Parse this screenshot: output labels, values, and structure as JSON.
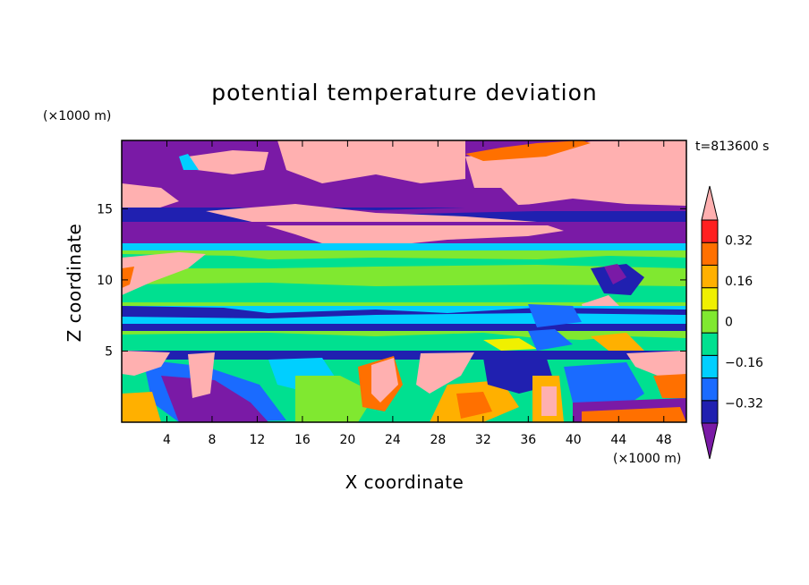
{
  "chart_data": {
    "type": "heatmap",
    "title": "potential temperature deviation",
    "xlabel": "X coordinate",
    "ylabel": "Z coordinate",
    "x_unit": "(×1000 m)",
    "y_unit": "(×1000 m)",
    "time_label": "t=813600 s",
    "xlim": [
      0,
      50
    ],
    "ylim": [
      0,
      19.8
    ],
    "x_ticks": [
      4,
      8,
      12,
      16,
      20,
      24,
      28,
      32,
      36,
      40,
      44,
      48
    ],
    "y_ticks": [
      5,
      10,
      15
    ],
    "colorbar": {
      "levels": [
        -0.4,
        -0.32,
        -0.24,
        -0.16,
        -0.08,
        0,
        0.08,
        0.16,
        0.24,
        0.32,
        0.4
      ],
      "labeled_levels": [
        {
          "value": 0.32,
          "label": "0.32"
        },
        {
          "value": 0.16,
          "label": "0.16"
        },
        {
          "value": 0,
          "label": "0"
        },
        {
          "value": -0.16,
          "label": "−0.16"
        },
        {
          "value": -0.32,
          "label": "−0.32"
        }
      ],
      "colors": [
        "#7a1aa6",
        "#2020b0",
        "#1a6bff",
        "#00cfff",
        "#00e090",
        "#80e830",
        "#f0f000",
        "#ffb000",
        "#ff7000",
        "#ff2020",
        "#ffb0b0"
      ],
      "extend": "both"
    },
    "layers": [
      {
        "z_range": [
          12.3,
          14.1
        ],
        "value": "< -0.40"
      },
      {
        "z_range": [
          14.1,
          15.3
        ],
        "value": "-0.32 to -0.24"
      },
      {
        "z_range": [
          8.5,
          12.3
        ],
        "value": "-0.08 to 0.08"
      },
      {
        "z_range": [
          6.2,
          8.5
        ],
        "value": "-0.16 to -0.08"
      },
      {
        "z_range": [
          5.0,
          6.2
        ],
        "value": "0 to 0.08"
      },
      {
        "z_range": [
          0,
          5.0
        ],
        "value": "mixed -0.40 to > 0.40"
      }
    ]
  }
}
